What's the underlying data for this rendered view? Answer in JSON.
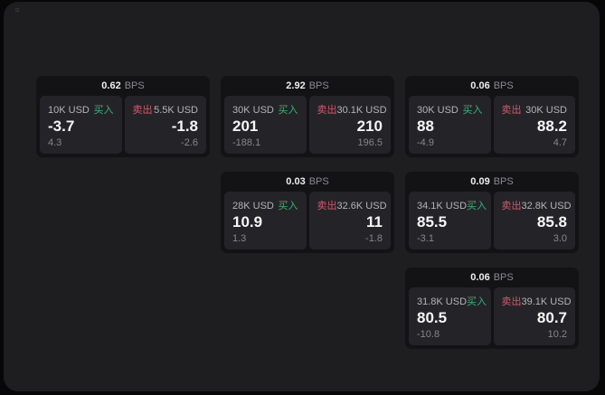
{
  "labels": {
    "bps": "BPS",
    "buy": "买入",
    "sell": "卖出"
  },
  "icons": {
    "corner_glyph": "≡"
  },
  "colors": {
    "page_background": "#070708",
    "window_background": "#1e1e20",
    "card_background": "#131315",
    "panel_background": "#242428",
    "buy_accent": "#3fae73",
    "sell_accent": "#cf5a6b"
  },
  "cards": [
    {
      "bps": "0.62",
      "buy": {
        "amount": "10K USD",
        "price": "-3.7",
        "delta": "4.3"
      },
      "sell": {
        "amount": "5.5K USD",
        "price": "-1.8",
        "delta": "-2.6"
      }
    },
    {
      "bps": "2.92",
      "buy": {
        "amount": "30K USD",
        "price": "201",
        "delta": "-188.1"
      },
      "sell": {
        "amount": "30.1K USD",
        "price": "210",
        "delta": "196.5"
      }
    },
    {
      "bps": "0.06",
      "buy": {
        "amount": "30K USD",
        "price": "88",
        "delta": "-4.9"
      },
      "sell": {
        "amount": "30K USD",
        "price": "88.2",
        "delta": "4.7"
      }
    },
    {
      "bps": "0.03",
      "buy": {
        "amount": "28K USD",
        "price": "10.9",
        "delta": "1.3"
      },
      "sell": {
        "amount": "32.6K USD",
        "price": "11",
        "delta": "-1.8"
      }
    },
    {
      "bps": "0.09",
      "buy": {
        "amount": "34.1K USD",
        "price": "85.5",
        "delta": "-3.1"
      },
      "sell": {
        "amount": "32.8K USD",
        "price": "85.8",
        "delta": "3.0"
      }
    },
    {
      "bps": "0.06",
      "buy": {
        "amount": "31.8K USD",
        "price": "80.5",
        "delta": "-10.8"
      },
      "sell": {
        "amount": "39.1K USD",
        "price": "80.7",
        "delta": "10.2"
      }
    }
  ]
}
